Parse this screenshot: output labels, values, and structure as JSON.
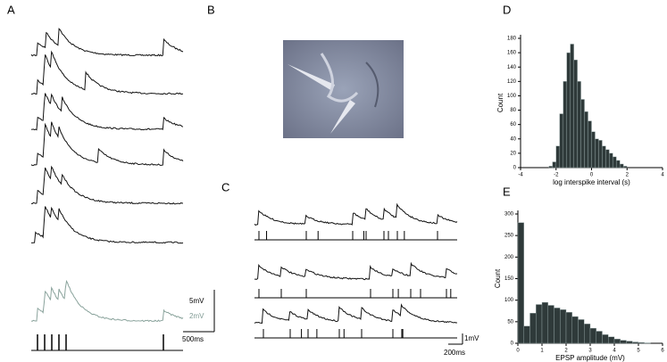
{
  "panels": {
    "a": {
      "label": "A",
      "scale_bar": {
        "voltage_black": "5mV",
        "voltage_gray": "2mV",
        "time": "500ms"
      }
    },
    "b": {
      "label": "B"
    },
    "c": {
      "label": "C",
      "scale_bar": {
        "voltage": "1mV",
        "time": "200ms"
      }
    }
  },
  "chart_data": [
    {
      "type": "histogram",
      "panel_label": "D",
      "x_label": "log interspike interval (s)",
      "y_label": "Count",
      "bins": [
        -2.4,
        -2.2,
        -2,
        -1.8,
        -1.6,
        -1.4,
        -1.2,
        -1,
        -0.8,
        -0.6,
        -0.4,
        -0.2,
        0,
        0.2,
        0.4,
        0.6,
        0.8,
        1,
        1.2,
        1.4,
        1.6,
        1.8,
        2
      ],
      "counts": [
        2,
        8,
        30,
        75,
        120,
        160,
        172,
        150,
        120,
        95,
        78,
        65,
        50,
        40,
        38,
        30,
        25,
        20,
        15,
        10,
        5,
        2
      ],
      "color": "#2f3a3a",
      "xlim": [
        -4,
        4
      ],
      "ylim": [
        0,
        180
      ],
      "xticks": [
        -4,
        -2,
        0,
        2,
        4
      ],
      "yticks": [
        0,
        20,
        40,
        60,
        80,
        100,
        120,
        140,
        160,
        180
      ]
    },
    {
      "type": "histogram",
      "panel_label": "E",
      "x_label": "EPSP amplitude (mV)",
      "y_label": "Count",
      "bins": [
        0,
        0.25,
        0.5,
        0.75,
        1,
        1.25,
        1.5,
        1.75,
        2,
        2.25,
        2.5,
        2.75,
        3,
        3.25,
        3.5,
        3.75,
        4,
        4.25,
        4.5,
        4.75,
        5,
        5.25,
        5.5
      ],
      "counts": [
        280,
        40,
        70,
        90,
        95,
        88,
        82,
        78,
        72,
        62,
        55,
        45,
        35,
        28,
        20,
        15,
        10,
        7,
        5,
        3,
        2,
        1
      ],
      "color": "#2f3a3a",
      "xlim": [
        0,
        6
      ],
      "ylim": [
        0,
        300
      ],
      "xticks": [
        0,
        1,
        2,
        3,
        4,
        5,
        6
      ],
      "yticks": [
        0,
        50,
        100,
        150,
        200,
        250,
        300
      ]
    }
  ]
}
